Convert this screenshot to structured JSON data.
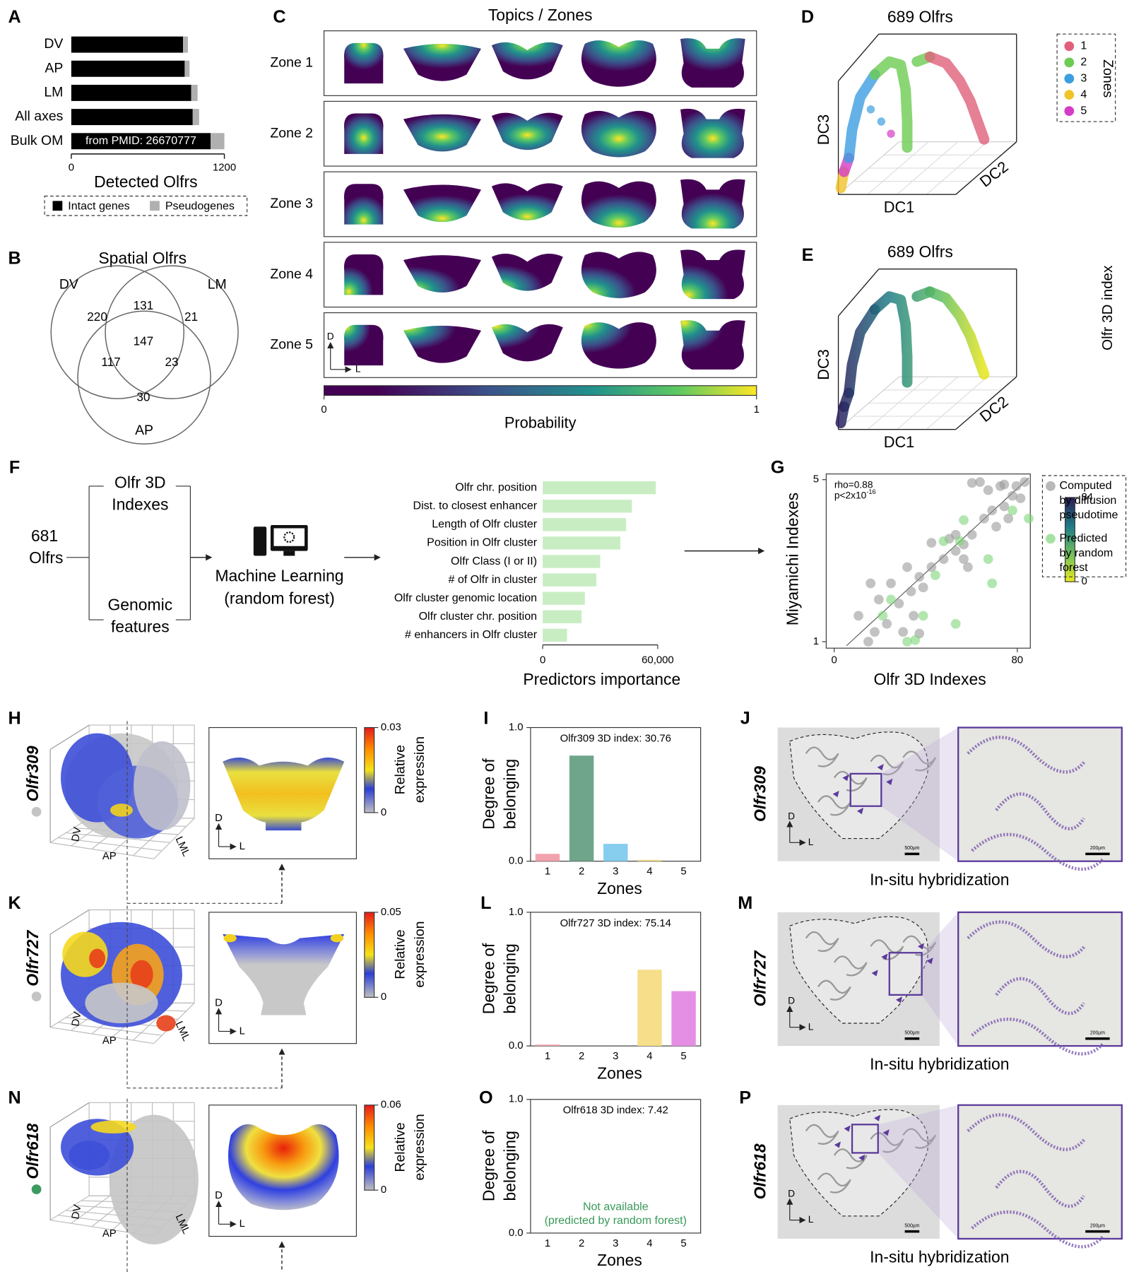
{
  "panel_labels": [
    "A",
    "B",
    "C",
    "D",
    "E",
    "F",
    "G",
    "H",
    "I",
    "J",
    "K",
    "L",
    "M",
    "N",
    "O",
    "P"
  ],
  "chart_data": [
    {
      "type": "hbar-stacked",
      "categories": [
        "DV",
        "AP",
        "LM",
        "All axes",
        "Bulk OM"
      ],
      "series": [
        {
          "name": "Intact genes",
          "color": "#000000",
          "values": [
            876,
            889,
            940,
            952,
            1092
          ]
        },
        {
          "name": "Pseudogenes",
          "color": "#b0b0b0",
          "values": [
            38,
            38,
            50,
            50,
            108
          ]
        }
      ],
      "xlim": [
        0,
        1200
      ],
      "xticks": [
        0,
        1200
      ],
      "xlabel": "Detected Olfrs",
      "annotation": "from PMID: 26670777"
    },
    {
      "type": "hbar",
      "categories": [
        "Olfr chr. position",
        "Dist. to closest enhancer",
        "Length of Olfr cluster",
        "Position in Olfr cluster",
        "Olfr Class (I or II)",
        "# of Olfr in cluster",
        "Olfr cluster genomic location",
        "Olfr cluster chr. position",
        "# enhancers in Olfr cluster"
      ],
      "values": [
        59000,
        46500,
        43500,
        40500,
        30000,
        28000,
        22000,
        20300,
        12700
      ],
      "color": "#c9edc3",
      "xlim": [
        0,
        60000
      ],
      "xticks": [
        0,
        {
          "value": 60000,
          "label": "60,000"
        }
      ],
      "xlabel": "Predictors importance"
    },
    {
      "type": "scatter",
      "xlabel": "Olfr 3D Indexes",
      "ylabel": "Miyamichi Indexes",
      "xlim": [
        -3.5,
        85.7
      ],
      "ylim": [
        0.84,
        5.14
      ],
      "xticks": [
        0,
        80
      ],
      "yticks": [
        1,
        5
      ],
      "annotation": "rho=0.88",
      "p_value": {
        "base": "p<2x10",
        "exponent": "-16"
      },
      "series": [
        {
          "name": [
            "Computed",
            "by diffusion",
            "pseudotime"
          ],
          "color": "#9a9a9a",
          "x": [
            14.9,
            17.7,
            30.1,
            37.2,
            34.7,
            23.0,
            10.6,
            19.5,
            24.8,
            15.9,
            31.9,
            37.2,
            42.5,
            47.8,
            53.1,
            56.6,
            50.3,
            60.2,
            65.5,
            69.0,
            74.3,
            77.9,
            72.6,
            79.6,
            83.2,
            74.3,
            63.7,
            60.2,
            67.3,
            76.1,
            56.6,
            33.6,
            42.5,
            28.3,
            38.9,
            81.4,
            53.1,
            58.4,
            70.8
          ],
          "values": [
            1.0,
            1.24,
            1.24,
            1.2,
            1.64,
            1.44,
            1.64,
            2.04,
            2.44,
            2.44,
            2.84,
            2.6,
            2.84,
            3.04,
            3.24,
            3.4,
            3.54,
            3.64,
            4.04,
            4.24,
            4.34,
            4.6,
            4.84,
            4.84,
            4.94,
            4.88,
            4.94,
            4.92,
            4.74,
            4.04,
            3.04,
            2.24,
            3.44,
            1.94,
            2.34,
            4.54,
            3.64,
            2.84,
            3.84
          ]
        },
        {
          "name": [
            "Predicted",
            "by random",
            "forest"
          ],
          "color": "#7fd67a",
          "x": [
            31.9,
            35.4,
            38.9,
            21.2,
            24.8,
            44.2,
            47.8,
            54.9,
            56.6,
            67.3,
            69.0,
            77.9,
            85.0,
            53.1
          ],
          "values": [
            1.0,
            1.04,
            1.64,
            1.64,
            2.04,
            2.64,
            3.48,
            3.48,
            4.0,
            3.04,
            2.44,
            4.24,
            4.04,
            1.44
          ]
        }
      ]
    },
    {
      "type": "bar",
      "title": "Olfr309 3D index: 30.76",
      "categories": [
        "1",
        "2",
        "3",
        "4",
        "5"
      ],
      "values": [
        0.055,
        0.79,
        0.13,
        0.01,
        0
      ],
      "colors": [
        "#f2a3ad",
        "#6fa58a",
        "#86cdee",
        "#f6de8a",
        "#e48fe3"
      ],
      "ylim": [
        0,
        1
      ],
      "yticks": [
        {
          "value": 0,
          "label": "0.0"
        },
        {
          "value": 1,
          "label": "1.0"
        }
      ],
      "ylabel": [
        "Degree of",
        "belonging"
      ],
      "xlabel": "Zones"
    },
    {
      "type": "bar",
      "title": "Olfr727 3D index: 75.14",
      "categories": [
        "1",
        "2",
        "3",
        "4",
        "5"
      ],
      "values": [
        0.01,
        0,
        0,
        0.57,
        0.41
      ],
      "colors": [
        "#f2a3ad",
        "#6fa58a",
        "#86cdee",
        "#f6de8a",
        "#e48fe3"
      ],
      "ylim": [
        0,
        1
      ],
      "yticks": [
        {
          "value": 0,
          "label": "0.0"
        },
        {
          "value": 1,
          "label": "1.0"
        }
      ],
      "ylabel": [
        "Degree of",
        "belonging"
      ],
      "xlabel": "Zones"
    },
    {
      "type": "bar",
      "title": "Olfr618 3D index: 7.42",
      "categories": [
        "1",
        "2",
        "3",
        "4",
        "5"
      ],
      "values": [
        null,
        null,
        null,
        null,
        null
      ],
      "note": [
        "Not available",
        "(predicted by random forest)"
      ],
      "colors": [
        "#f2a3ad",
        "#6fa58a",
        "#86cdee",
        "#f6de8a",
        "#e48fe3"
      ],
      "ylim": [
        0,
        1
      ],
      "yticks": [
        {
          "value": 0,
          "label": "0.0"
        },
        {
          "value": 1,
          "label": "1.0"
        }
      ],
      "ylabel": [
        "Degree of",
        "belonging"
      ],
      "xlabel": "Zones"
    }
  ],
  "venn": {
    "title": "Spatial Olfrs",
    "sets": [
      "DV",
      "LM",
      "AP"
    ],
    "counts": [
      220,
      131,
      21,
      147,
      117,
      23,
      30
    ]
  },
  "zones_panel": {
    "title": "Topics / Zones",
    "zones": [
      "Zone 1",
      "Zone 2",
      "Zone 3",
      "Zone 4",
      "Zone 5"
    ],
    "colorbar": {
      "min": 0,
      "max": 1,
      "label": "Probability"
    },
    "axis_letters": [
      "D",
      "L"
    ]
  },
  "dc_panels": [
    {
      "title": "689 Olfrs",
      "axes": [
        "DC1",
        "DC2",
        "DC3"
      ],
      "legend_title": "Zones",
      "legend": [
        {
          "label": "1",
          "color": "#e0607a"
        },
        {
          "label": "2",
          "color": "#6dcc52"
        },
        {
          "label": "3",
          "color": "#3c9ee0"
        },
        {
          "label": "4",
          "color": "#f2c328"
        },
        {
          "label": "5",
          "color": "#d43cc8"
        }
      ]
    },
    {
      "title": "689 Olfrs",
      "axes": [
        "DC1",
        "DC2",
        "DC3"
      ],
      "colorbar": {
        "max": 84,
        "min": 0,
        "label": "Olfr 3D index"
      }
    }
  ],
  "flow": {
    "input": [
      "681",
      "Olfrs"
    ],
    "features": [
      [
        "Olfr 3D",
        "Indexes"
      ],
      [
        "Genomic",
        "features"
      ]
    ],
    "model": [
      "Machine Learning",
      "(random forest)"
    ]
  },
  "expression_panels": [
    {
      "gene": "Olfr309",
      "dot_color": "#c4c4c4",
      "axes": [
        "DV",
        "AP",
        "LML"
      ],
      "colorbar": {
        "max": 0.03,
        "min": 0,
        "label": [
          "Relative",
          "expression"
        ]
      },
      "axis_letters": [
        "D",
        "L"
      ]
    },
    {
      "gene": "Olfr727",
      "dot_color": "#c4c4c4",
      "axes": [
        "DV",
        "AP",
        "LML"
      ],
      "colorbar": {
        "max": 0.05,
        "min": 0,
        "label": [
          "Relative",
          "expression"
        ]
      },
      "axis_letters": [
        "D",
        "L"
      ]
    },
    {
      "gene": "Olfr618",
      "dot_color": "#3d9a62",
      "axes": [
        "DV",
        "AP",
        "LML"
      ],
      "colorbar": {
        "max": 0.06,
        "min": 0,
        "label": [
          "Relative",
          "expression"
        ]
      },
      "axis_letters": [
        "D",
        "L"
      ]
    }
  ],
  "ish_panels": [
    {
      "gene": "Olfr309",
      "caption": "In-situ hybridization",
      "scale_bars": [
        "500µm",
        "200µm"
      ],
      "axis_letters": [
        "D",
        "L"
      ]
    },
    {
      "gene": "Olfr727",
      "caption": "In-situ hybridization",
      "scale_bars": [
        "500µm",
        "200µm"
      ],
      "axis_letters": [
        "D",
        "L"
      ]
    },
    {
      "gene": "Olfr618",
      "caption": "In-situ hybridization",
      "scale_bars": [
        "500µm",
        "200µm"
      ],
      "axis_letters": [
        "D",
        "L"
      ]
    }
  ]
}
